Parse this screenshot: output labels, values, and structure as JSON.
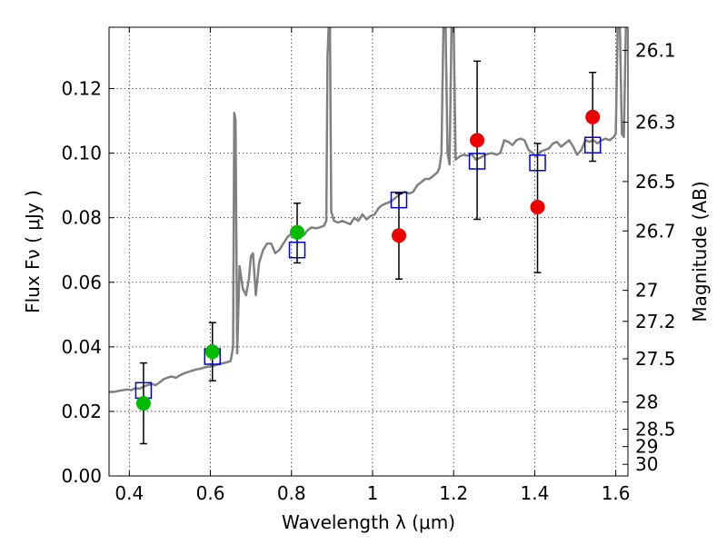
{
  "chart_data": {
    "type": "scatter",
    "xlabel": "Wavelength  λ (μm)",
    "ylabel": "Flux  Fν  ( μJy )",
    "y2label": "Magnitude (AB)",
    "xlim": [
      0.35,
      1.63
    ],
    "ylim": [
      0.0,
      0.139
    ],
    "x_ticks": [
      0.4,
      0.6,
      0.8,
      1.0,
      1.2,
      1.4,
      1.6
    ],
    "x_tick_labels": [
      "0.4",
      "0.6",
      "0.8",
      "1",
      "1.2",
      "1.4",
      "1.6"
    ],
    "y_ticks": [
      0.0,
      0.02,
      0.04,
      0.06,
      0.08,
      0.1,
      0.12
    ],
    "y_tick_labels": [
      "0.00",
      "0.02",
      "0.04",
      "0.06",
      "0.08",
      "0.10",
      "0.12"
    ],
    "y2_ticks": [
      {
        "label": "26.1",
        "flux": 0.1318
      },
      {
        "label": "26.3",
        "flux": 0.1096
      },
      {
        "label": "26.5",
        "flux": 0.0912
      },
      {
        "label": "26.7",
        "flux": 0.0759
      },
      {
        "label": "27",
        "flux": 0.0575
      },
      {
        "label": "27.2",
        "flux": 0.0479
      },
      {
        "label": "27.5",
        "flux": 0.0363
      },
      {
        "label": "28",
        "flux": 0.0229
      },
      {
        "label": "28.5",
        "flux": 0.0145
      },
      {
        "label": "29",
        "flux": 0.0091
      },
      {
        "label": "30",
        "flux": 0.0036
      }
    ],
    "grid": true,
    "colors": {
      "sed": "#808080",
      "model": "#0000cc",
      "obs_green": "#00bb00",
      "obs_red": "#ee0000",
      "errorbar": "#000000"
    },
    "series": [
      {
        "name": "model_sed",
        "type": "line",
        "points": [
          [
            0.35,
            0.026
          ],
          [
            0.365,
            0.0261
          ],
          [
            0.38,
            0.0265
          ],
          [
            0.395,
            0.0268
          ],
          [
            0.405,
            0.0266
          ],
          [
            0.415,
            0.0272
          ],
          [
            0.425,
            0.027
          ],
          [
            0.44,
            0.0279
          ],
          [
            0.455,
            0.0285
          ],
          [
            0.465,
            0.0281
          ],
          [
            0.475,
            0.029
          ],
          [
            0.485,
            0.03
          ],
          [
            0.495,
            0.0305
          ],
          [
            0.505,
            0.0308
          ],
          [
            0.515,
            0.0304
          ],
          [
            0.525,
            0.0312
          ],
          [
            0.535,
            0.0318
          ],
          [
            0.545,
            0.0322
          ],
          [
            0.555,
            0.0326
          ],
          [
            0.565,
            0.033
          ],
          [
            0.575,
            0.0332
          ],
          [
            0.585,
            0.0336
          ],
          [
            0.595,
            0.0339
          ],
          [
            0.61,
            0.0342
          ],
          [
            0.62,
            0.0346
          ],
          [
            0.63,
            0.0349
          ],
          [
            0.64,
            0.0352
          ],
          [
            0.65,
            0.0356
          ],
          [
            0.656,
            0.04
          ],
          [
            0.659,
            0.1125
          ],
          [
            0.662,
            0.11
          ],
          [
            0.666,
            0.038
          ],
          [
            0.672,
            0.065
          ],
          [
            0.68,
            0.058
          ],
          [
            0.688,
            0.056
          ],
          [
            0.695,
            0.061
          ],
          [
            0.7,
            0.068
          ],
          [
            0.705,
            0.069
          ],
          [
            0.712,
            0.056
          ],
          [
            0.72,
            0.066
          ],
          [
            0.73,
            0.07
          ],
          [
            0.74,
            0.072
          ],
          [
            0.75,
            0.072
          ],
          [
            0.76,
            0.069
          ],
          [
            0.77,
            0.07
          ],
          [
            0.78,
            0.072
          ],
          [
            0.79,
            0.074
          ],
          [
            0.8,
            0.075
          ],
          [
            0.81,
            0.075
          ],
          [
            0.82,
            0.0755
          ],
          [
            0.83,
            0.0745
          ],
          [
            0.84,
            0.0762
          ],
          [
            0.85,
            0.077
          ],
          [
            0.86,
            0.0767
          ],
          [
            0.87,
            0.077
          ],
          [
            0.88,
            0.0775
          ],
          [
            0.886,
            0.079
          ],
          [
            0.889,
            0.13
          ],
          [
            0.892,
            0.14
          ],
          [
            0.895,
            0.14
          ],
          [
            0.898,
            0.082
          ],
          [
            0.905,
            0.079
          ],
          [
            0.915,
            0.0785
          ],
          [
            0.925,
            0.079
          ],
          [
            0.935,
            0.0785
          ],
          [
            0.945,
            0.078
          ],
          [
            0.955,
            0.08
          ],
          [
            0.965,
            0.079
          ],
          [
            0.975,
            0.081
          ],
          [
            0.985,
            0.0795
          ],
          [
            0.995,
            0.0805
          ],
          [
            1.005,
            0.081
          ],
          [
            1.015,
            0.083
          ],
          [
            1.025,
            0.084
          ],
          [
            1.035,
            0.0845
          ],
          [
            1.045,
            0.085
          ],
          [
            1.055,
            0.086
          ],
          [
            1.065,
            0.087
          ],
          [
            1.07,
            0.0875
          ],
          [
            1.08,
            0.088
          ],
          [
            1.09,
            0.0875
          ],
          [
            1.1,
            0.088
          ],
          [
            1.11,
            0.09
          ],
          [
            1.12,
            0.091
          ],
          [
            1.13,
            0.092
          ],
          [
            1.14,
            0.092
          ],
          [
            1.15,
            0.093
          ],
          [
            1.16,
            0.094
          ],
          [
            1.165,
            0.0955
          ],
          [
            1.17,
            0.1
          ],
          [
            1.175,
            0.14
          ],
          [
            1.18,
            0.14
          ],
          [
            1.185,
            0.1
          ],
          [
            1.19,
            0.0965
          ],
          [
            1.195,
            0.14
          ],
          [
            1.2,
            0.14
          ],
          [
            1.205,
            0.098
          ],
          [
            1.215,
            0.099
          ],
          [
            1.225,
            0.0995
          ],
          [
            1.235,
            0.0992
          ],
          [
            1.245,
            0.0996
          ],
          [
            1.255,
            0.098
          ],
          [
            1.265,
            0.0985
          ],
          [
            1.275,
            0.0993
          ],
          [
            1.285,
            0.0998
          ],
          [
            1.295,
            0.1
          ],
          [
            1.305,
            0.0995
          ],
          [
            1.315,
            0.1
          ],
          [
            1.325,
            0.104
          ],
          [
            1.335,
            0.1035
          ],
          [
            1.345,
            0.1025
          ],
          [
            1.355,
            0.104
          ],
          [
            1.365,
            0.1045
          ],
          [
            1.375,
            0.104
          ],
          [
            1.385,
            0.101
          ],
          [
            1.395,
            0.1
          ],
          [
            1.405,
            0.099
          ],
          [
            1.415,
            0.1005
          ],
          [
            1.425,
            0.101
          ],
          [
            1.435,
            0.1015
          ],
          [
            1.445,
            0.103
          ],
          [
            1.455,
            0.1035
          ],
          [
            1.465,
            0.102
          ],
          [
            1.475,
            0.103
          ],
          [
            1.485,
            0.104
          ],
          [
            1.495,
            0.102
          ],
          [
            1.505,
            0.0995
          ],
          [
            1.515,
            0.101
          ],
          [
            1.525,
            0.104
          ],
          [
            1.535,
            0.1035
          ],
          [
            1.545,
            0.104
          ],
          [
            1.555,
            0.103
          ],
          [
            1.565,
            0.104
          ],
          [
            1.575,
            0.1045
          ],
          [
            1.585,
            0.104
          ],
          [
            1.595,
            0.105
          ],
          [
            1.6,
            0.106
          ],
          [
            1.605,
            0.14
          ],
          [
            1.61,
            0.14
          ],
          [
            1.615,
            0.106
          ],
          [
            1.62,
            0.105
          ],
          [
            1.625,
            0.14
          ],
          [
            1.63,
            0.14
          ]
        ]
      },
      {
        "name": "model_band_flux",
        "type": "scatter",
        "marker": "open-square",
        "points": [
          [
            0.435,
            0.0265
          ],
          [
            0.605,
            0.037
          ],
          [
            0.814,
            0.07
          ],
          [
            1.065,
            0.0855
          ],
          [
            1.258,
            0.0975
          ],
          [
            1.407,
            0.097
          ],
          [
            1.543,
            0.1025
          ]
        ]
      },
      {
        "name": "observed_flux",
        "type": "scatter",
        "marker": "filled-circle",
        "points": [
          {
            "x": 0.435,
            "y": 0.0225,
            "err_lo": 0.01,
            "err_hi": 0.035,
            "color": "green"
          },
          {
            "x": 0.605,
            "y": 0.0385,
            "err_lo": 0.0295,
            "err_hi": 0.0475,
            "color": "green"
          },
          {
            "x": 0.814,
            "y": 0.0755,
            "err_lo": 0.066,
            "err_hi": 0.0845,
            "color": "green"
          },
          {
            "x": 1.065,
            "y": 0.0745,
            "err_lo": 0.061,
            "err_hi": 0.0875,
            "color": "red"
          },
          {
            "x": 1.258,
            "y": 0.104,
            "err_lo": 0.0795,
            "err_hi": 0.1285,
            "color": "red"
          },
          {
            "x": 1.407,
            "y": 0.0833,
            "err_lo": 0.063,
            "err_hi": 0.103,
            "color": "red"
          },
          {
            "x": 1.543,
            "y": 0.1112,
            "err_lo": 0.0975,
            "err_hi": 0.125,
            "color": "red"
          }
        ]
      }
    ]
  }
}
